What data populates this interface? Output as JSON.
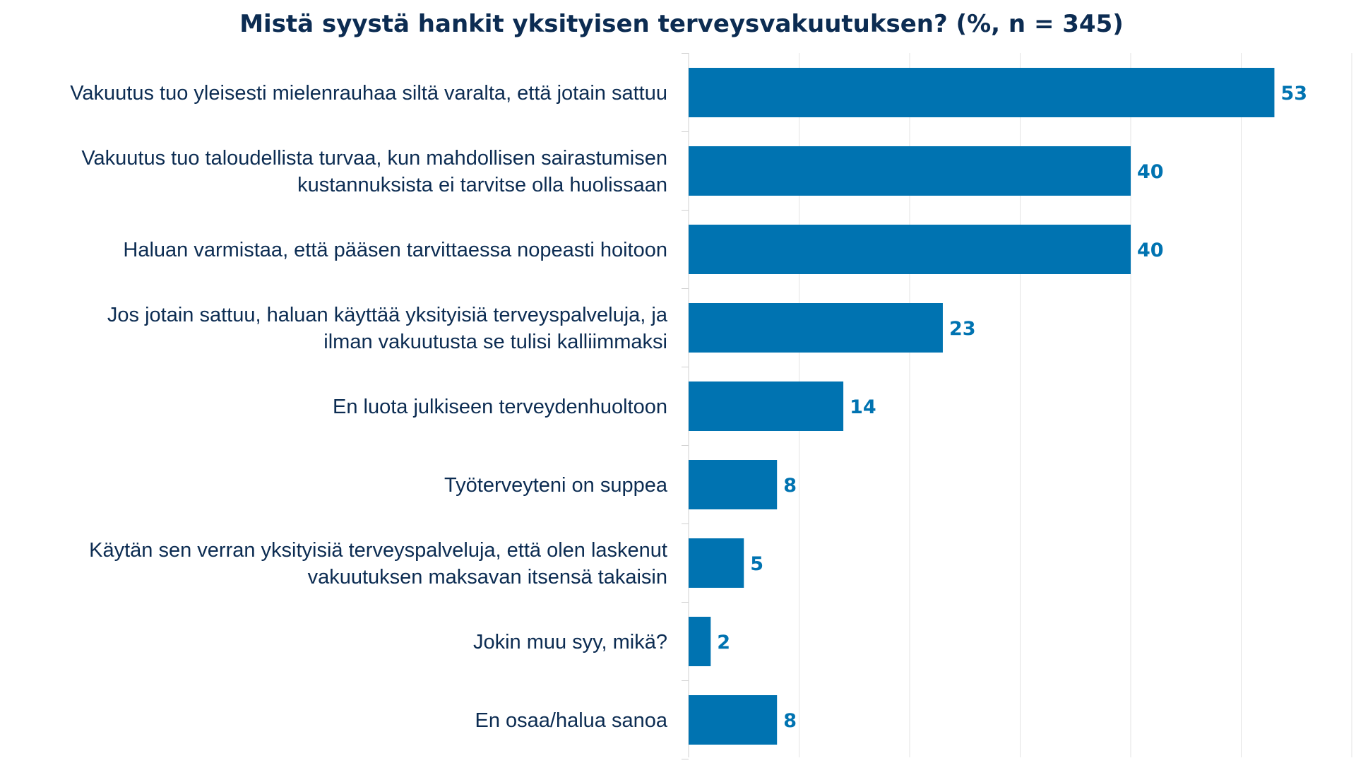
{
  "chart_data": {
    "type": "bar",
    "orientation": "horizontal",
    "title": "Mistä syystä hankit yksityisen terveysvakuutuksen? (%, n = 345)",
    "categories": [
      [
        "Vakuutus tuo yleisesti mielenrauhaa siltä varalta, että jotain sattuu"
      ],
      [
        "Vakuutus tuo taloudellista turvaa, kun mahdollisen sairastumisen",
        "kustannuksista ei tarvitse olla huolissaan"
      ],
      [
        "Haluan varmistaa, että pääsen tarvittaessa nopeasti hoitoon"
      ],
      [
        "Jos jotain sattuu, haluan käyttää yksityisiä terveyspalveluja, ja",
        "ilman vakuutusta se tulisi kalliimmaksi"
      ],
      [
        "En luota julkiseen terveydenhuoltoon"
      ],
      [
        "Työterveyteni on suppea"
      ],
      [
        "Käytän sen verran yksityisiä terveyspalveluja, että olen laskenut",
        "vakuutuksen maksavan itsensä takaisin"
      ],
      [
        "Jokin muu syy, mikä?"
      ],
      [
        "En osaa/halua sanoa"
      ]
    ],
    "values": [
      53,
      40,
      40,
      23,
      14,
      8,
      5,
      2,
      8
    ],
    "xlim": [
      0,
      60
    ],
    "grid": true,
    "legend": "none",
    "bar_color": "#0073b1",
    "label_color": "#0073b1",
    "text_color": "#0c2c52",
    "grid_color": "#e3e3e3"
  }
}
